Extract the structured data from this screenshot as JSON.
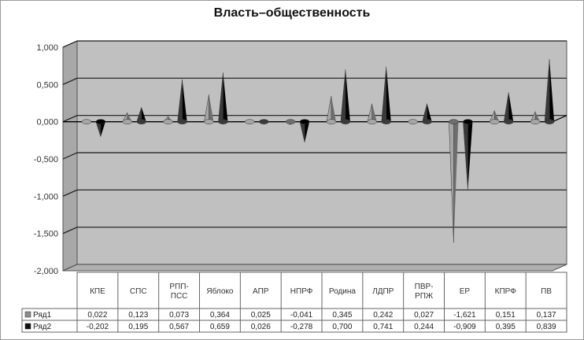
{
  "chart_data": {
    "type": "bar",
    "title": "Власть–общественность",
    "categories": [
      "КПЕ",
      "СПС",
      "РПП-ПСС",
      "Яблоко",
      "АПР",
      "НПРФ",
      "Родина",
      "ЛДПР",
      "ПВР-РПЖ",
      "ЕР",
      "КПРФ",
      "ПВ"
    ],
    "series": [
      {
        "name": "Ряд1",
        "values": [
          0.022,
          0.123,
          0.073,
          0.364,
          0.025,
          -0.041,
          0.345,
          0.242,
          0.027,
          -1.621,
          0.151,
          0.137
        ],
        "labels": [
          "0,022",
          "0,123",
          "0,073",
          "0,364",
          "0,025",
          "-0,041",
          "0,345",
          "0,242",
          "0,027",
          "-1,621",
          "0,151",
          "0,137"
        ],
        "color": "#8c8c8c"
      },
      {
        "name": "Ряд2",
        "values": [
          -0.202,
          0.195,
          0.567,
          0.659,
          0.026,
          -0.278,
          0.7,
          0.741,
          0.244,
          -0.909,
          0.395,
          0.839
        ],
        "labels": [
          "-0,202",
          "0,195",
          "0,567",
          "0,659",
          "0,026",
          "-0,278",
          "0,700",
          "0,741",
          "0,244",
          "-0,909",
          "0,395",
          "0,839"
        ],
        "color": "#111111"
      }
    ],
    "category_labels": [
      [
        "КПЕ"
      ],
      [
        "СПС"
      ],
      [
        "РПП-",
        "ПСС"
      ],
      [
        "Яблоко"
      ],
      [
        "АПР"
      ],
      [
        "НПРФ"
      ],
      [
        "Родина"
      ],
      [
        "ЛДПР"
      ],
      [
        "ПВР-",
        "РПЖ"
      ],
      [
        "ЕР"
      ],
      [
        "КПРФ"
      ],
      [
        "ПВ"
      ]
    ],
    "y_ticks": [
      "1,000",
      "0,500",
      "0,000",
      "-0,500",
      "-1,000",
      "-1,500",
      "-2,000"
    ],
    "ylim": [
      -2,
      1
    ],
    "grid": true,
    "legend": "data-table",
    "colors": {
      "plot_bg": "#c0c0c0",
      "wall_side": "#a8a8a8",
      "grid": "#1a1a1a"
    }
  }
}
